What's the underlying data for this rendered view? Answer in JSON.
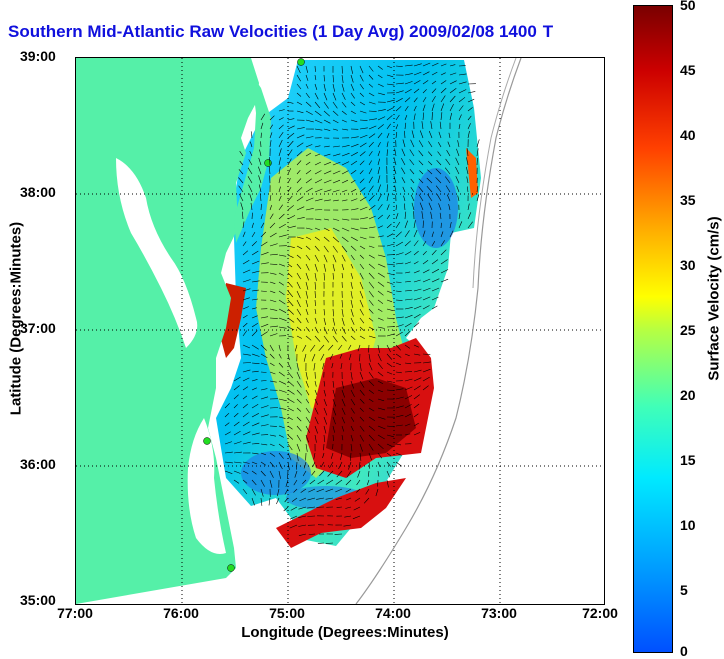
{
  "title": {
    "text": "Southern Mid-Atlantic Raw Velocities (1 Day Avg) 2009/02/08 1400",
    "suffix": "T"
  },
  "axes": {
    "xlabel": "Longitude (Degrees:Minutes)",
    "ylabel": "Latitude (Degrees:Minutes)",
    "x_ticks": [
      "77:00",
      "76:00",
      "75:00",
      "74:00",
      "73:00",
      "72:00"
    ],
    "y_ticks": [
      "39:00",
      "38:00",
      "37:00",
      "36:00",
      "35:00"
    ]
  },
  "colorbar": {
    "label": "Surface Velocity (cm/s)",
    "ticks": [
      "50",
      "45",
      "40",
      "35",
      "30",
      "25",
      "20",
      "15",
      "10",
      "5",
      "0"
    ],
    "range": [
      0,
      50
    ]
  },
  "colors": {
    "land": "#55f0a8",
    "title": "#1010dd",
    "station": "#22dd22"
  }
}
